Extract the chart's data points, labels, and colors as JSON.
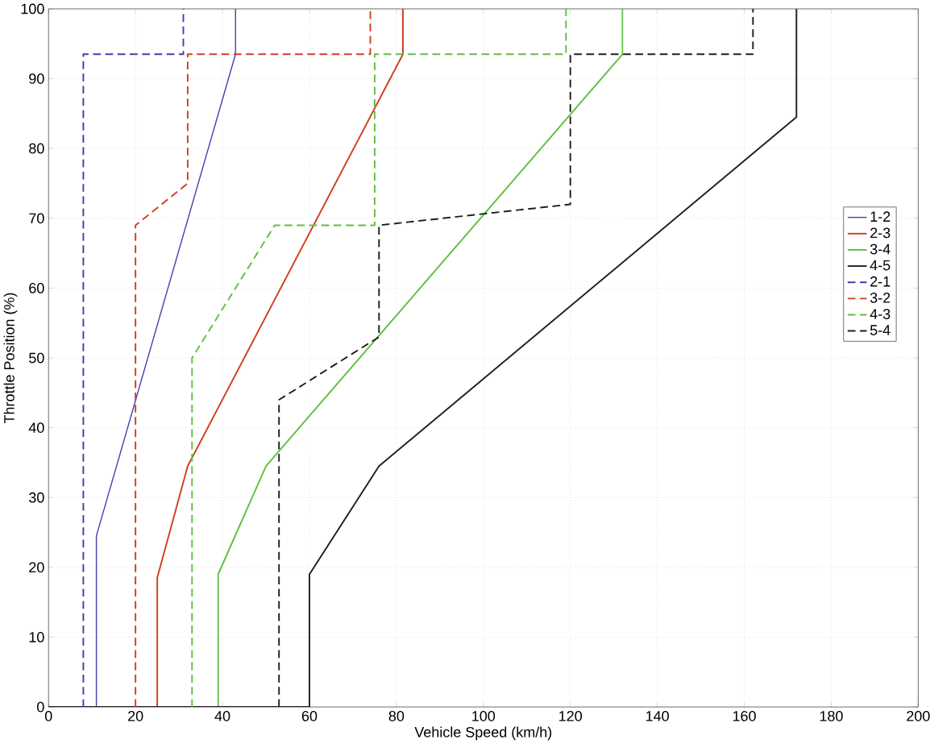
{
  "chart_data": {
    "type": "line",
    "xlabel": "Vehicle Speed (km/h)",
    "ylabel": "Throttle Position (%)",
    "xlim": [
      0,
      200
    ],
    "ylim": [
      0,
      100
    ],
    "xticks": [
      0,
      20,
      40,
      60,
      80,
      100,
      120,
      140,
      160,
      180,
      200
    ],
    "yticks": [
      0,
      10,
      20,
      30,
      40,
      50,
      60,
      70,
      80,
      90,
      100
    ],
    "grid": true,
    "legend": "right",
    "marker": "none",
    "series": [
      {
        "name": "1-2",
        "color": "#4040b0",
        "line_style": "solid",
        "x": [
          11,
          11,
          43,
          43
        ],
        "values": [
          0,
          24.5,
          93.5,
          100
        ]
      },
      {
        "name": "2-3",
        "color": "#d04020",
        "line_style": "solid",
        "x": [
          25,
          25,
          32,
          81.5,
          81.5
        ],
        "values": [
          0,
          18.5,
          34.5,
          93.5,
          100
        ]
      },
      {
        "name": "3-4",
        "color": "#60c040",
        "line_style": "solid",
        "x": [
          39,
          39,
          50,
          132,
          132
        ],
        "values": [
          0,
          19,
          34.5,
          93.5,
          100
        ]
      },
      {
        "name": "4-5",
        "color": "#202020",
        "line_style": "solid",
        "x": [
          0,
          60,
          60,
          76,
          172,
          172
        ],
        "values": [
          0,
          0,
          19,
          34.5,
          84.5,
          100
        ]
      },
      {
        "name": "2-1",
        "color": "#4040b0",
        "line_style": "dashed",
        "x": [
          8,
          8,
          31,
          31
        ],
        "values": [
          0,
          93.5,
          93.5,
          100
        ]
      },
      {
        "name": "3-2",
        "color": "#d04020",
        "line_style": "dashed",
        "x": [
          20,
          20,
          32,
          32,
          74,
          74
        ],
        "values": [
          0,
          69,
          75,
          93.5,
          93.5,
          100
        ]
      },
      {
        "name": "4-3",
        "color": "#60c040",
        "line_style": "dashed",
        "x": [
          33,
          33,
          52,
          75,
          75,
          119,
          119
        ],
        "values": [
          0,
          50,
          69,
          69,
          93.5,
          93.5,
          100
        ]
      },
      {
        "name": "5-4",
        "color": "#202020",
        "line_style": "dashed",
        "x": [
          53,
          53,
          76,
          76,
          120,
          120,
          162,
          162
        ],
        "values": [
          0,
          44,
          53,
          69,
          72,
          93.5,
          93.5,
          100
        ]
      }
    ]
  }
}
